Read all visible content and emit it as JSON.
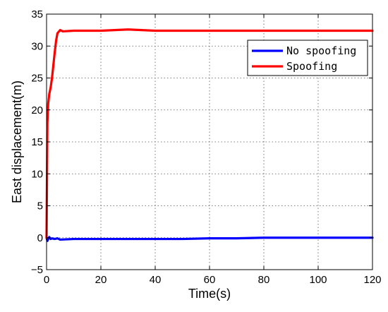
{
  "chart_data": {
    "type": "line",
    "title": "",
    "xlabel": "Time(s)",
    "ylabel": "East displacement(m)",
    "xlim": [
      0,
      120
    ],
    "ylim": [
      -5,
      35
    ],
    "xticks": [
      0,
      20,
      40,
      60,
      80,
      100,
      120
    ],
    "yticks": [
      -5,
      0,
      5,
      10,
      15,
      20,
      25,
      30,
      35
    ],
    "xtick_labels": [
      "0",
      "20",
      "40",
      "60",
      "80",
      "100",
      "120"
    ],
    "ytick_labels": [
      "−5",
      "0",
      "5",
      "10",
      "15",
      "20",
      "25",
      "30",
      "35"
    ],
    "grid": true,
    "legend_position": "top-right",
    "series": [
      {
        "name": "No spoofing",
        "color": "#0000ff",
        "x": [
          0,
          0.3,
          0.6,
          1,
          1.5,
          2,
          3,
          4,
          5,
          10,
          20,
          30,
          40,
          50,
          60,
          70,
          80,
          90,
          100,
          110,
          120
        ],
        "y": [
          0,
          -0.5,
          -0.2,
          0.1,
          -0.2,
          -0.1,
          -0.2,
          -0.1,
          -0.3,
          -0.2,
          -0.2,
          -0.2,
          -0.2,
          -0.2,
          -0.1,
          -0.1,
          0,
          0,
          0,
          0,
          0
        ]
      },
      {
        "name": "Spoofing",
        "color": "#ff0000",
        "x": [
          0,
          0.3,
          0.6,
          1,
          1.5,
          2,
          2.5,
          3,
          3.5,
          4,
          5,
          6,
          10,
          20,
          30,
          40,
          50,
          60,
          70,
          80,
          90,
          100,
          110,
          120
        ],
        "y": [
          0,
          18,
          21,
          22.5,
          23.5,
          25,
          27,
          29,
          30.8,
          32,
          32.5,
          32.3,
          32.4,
          32.4,
          32.6,
          32.4,
          32.4,
          32.4,
          32.4,
          32.4,
          32.4,
          32.4,
          32.4,
          32.4
        ]
      }
    ]
  }
}
